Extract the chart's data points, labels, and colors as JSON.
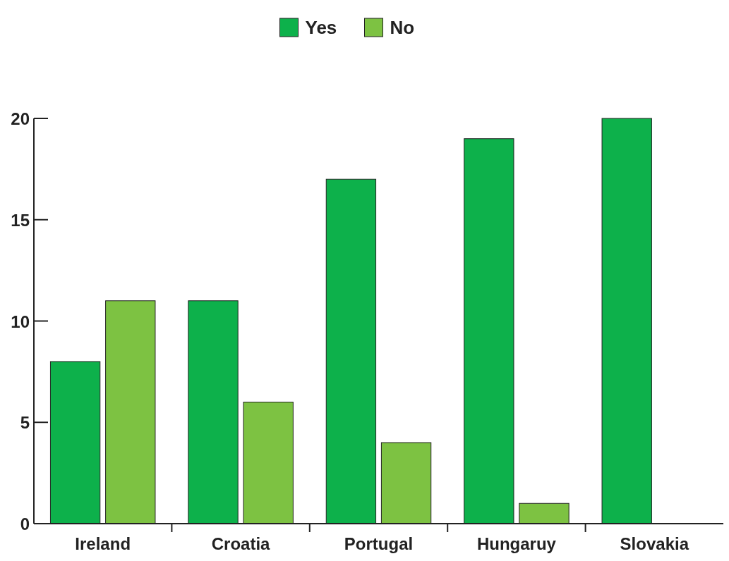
{
  "chart_data": {
    "type": "bar",
    "categories": [
      "Ireland",
      "Croatia",
      "Portugal",
      "Hungaruy",
      "Slovakia"
    ],
    "series": [
      {
        "name": "Yes",
        "color": "#0db14b",
        "values": [
          8,
          11,
          17,
          19,
          20
        ]
      },
      {
        "name": "No",
        "color": "#7dc242",
        "values": [
          11,
          6,
          4,
          1,
          0
        ]
      }
    ],
    "ylim": [
      0,
      20
    ],
    "yticks": [
      0,
      5,
      10,
      15,
      20
    ],
    "legend": "top",
    "grid": false
  }
}
